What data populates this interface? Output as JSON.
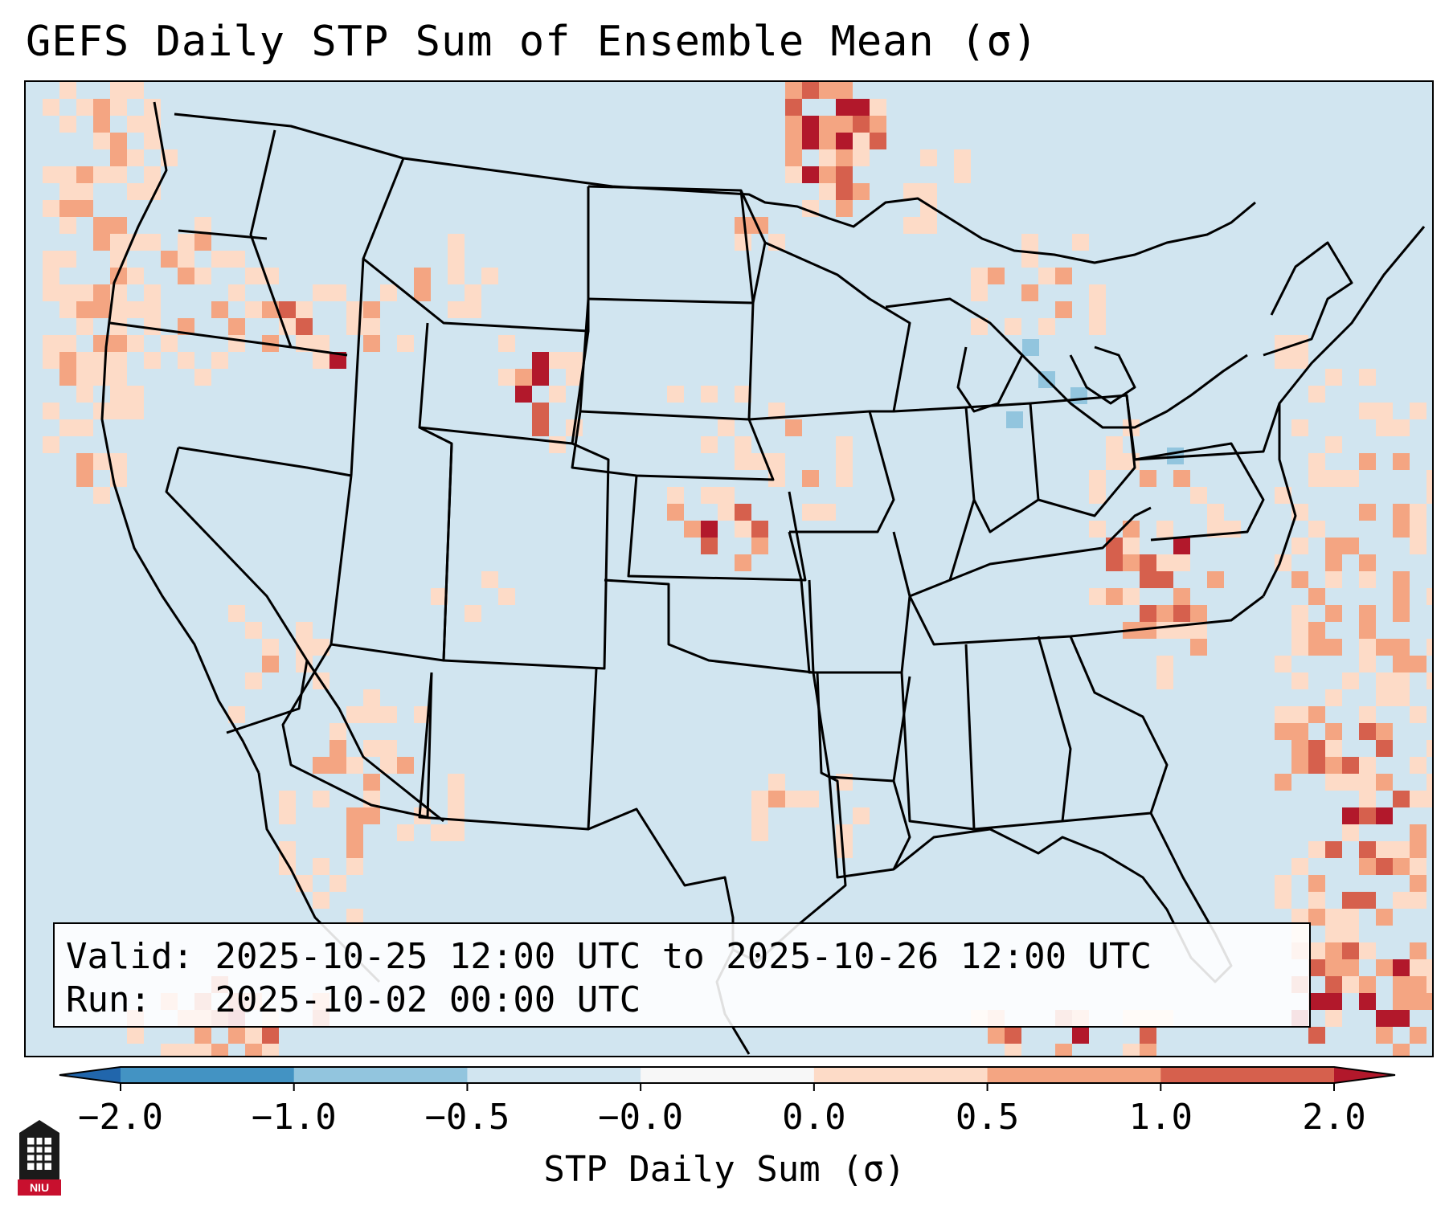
{
  "title": "GEFS Daily STP Sum of Ensemble Mean (σ)",
  "info": {
    "valid_label": "Valid:",
    "valid_value": "2025-10-25 12:00 UTC to 2025-10-26 12:00 UTC",
    "run_label": "Run:",
    "run_value": "2025-10-02 00:00 UTC"
  },
  "colorbar": {
    "label": "STP Daily Sum (σ)",
    "ticks": [
      "−2.0",
      "−1.0",
      "−0.5",
      "−0.0",
      "0.0",
      "0.5",
      "1.0",
      "2.0"
    ],
    "colors": [
      "#2166ac",
      "#4393c3",
      "#92c5de",
      "#d1e5f0",
      "#f7f7f7",
      "#fddbc7",
      "#f4a582",
      "#d6604d",
      "#b2182b"
    ],
    "under_color": "#2166ac",
    "over_color": "#b2182b"
  },
  "map": {
    "background_color": "#d1e5f0",
    "category_colors": {
      "light": "#fddbc7",
      "medium": "#f4a582",
      "strong": "#d6604d",
      "extreme": "#b2182b",
      "negative": "#92c5de"
    }
  },
  "logo": {
    "text": "NIU"
  }
}
